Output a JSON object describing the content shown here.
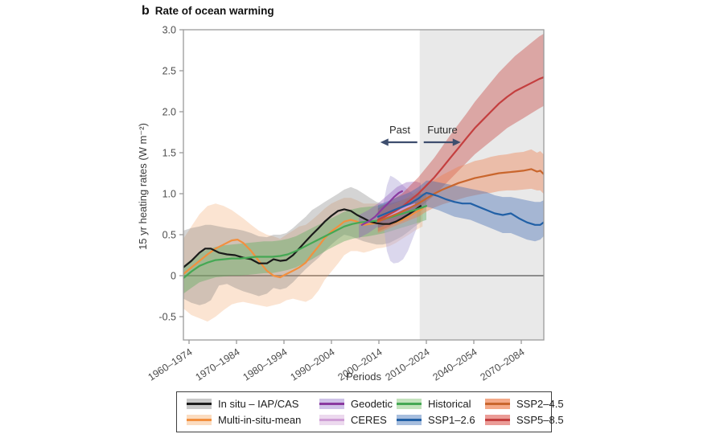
{
  "title": {
    "index": "b",
    "text": "Rate of ocean warming"
  },
  "axes": {
    "y_label": "15 yr heating rates (W m⁻²)",
    "x_label": "Periods",
    "y_tick_labels": [
      "3.0",
      "2.5",
      "2.0",
      "1.5",
      "1.0",
      "0.5",
      "0",
      "-0.5"
    ],
    "y_tick_values": [
      3.0,
      2.5,
      2.0,
      1.5,
      1.0,
      0.5,
      0,
      -0.5
    ],
    "x_tick_labels": [
      "1960–1974",
      "1970–1984",
      "1980–1994",
      "1990–2004",
      "2000–2014",
      "2010–2024",
      "2040–2054",
      "2070–2084"
    ]
  },
  "annotation": {
    "past": "Past",
    "future": "Future",
    "arrow_color": "#3e4e6e"
  },
  "style": {
    "future_region_fill": "#e9e9e9",
    "zero_line_color": "#8c8c8c",
    "axis_color": "#9a9a9a",
    "tick_text_color": "#4d4d4d"
  },
  "chart_data": {
    "type": "line",
    "title": "Rate of ocean warming",
    "xlabel": "Periods",
    "ylabel": "15 yr heating rates (W m⁻²)",
    "ylim": [
      -0.78,
      3.0
    ],
    "x_categories": [
      "1960–1974",
      "1970–1984",
      "1980–1994",
      "1990–2004",
      "2000–2014",
      "2010–2024",
      "2040–2054",
      "2070–2084"
    ],
    "future_start_index": 4.86,
    "grid": false,
    "legend_position": "bottom",
    "series": [
      {
        "id": "multi",
        "name": "Multi-in-situ-mean",
        "line_color": "#f2903f",
        "band_fill": "rgba(243,164,105,0.30)",
        "x": [
          -0.12,
          0.05,
          0.22,
          0.39,
          0.56,
          0.73,
          0.9,
          1.02,
          1.14,
          1.31,
          1.47,
          1.64,
          1.78,
          1.92,
          2.05,
          2.19,
          2.32,
          2.46,
          2.59,
          2.73,
          2.86,
          3,
          3.14,
          3.27,
          3.41,
          3.54,
          3.68,
          3.81,
          3.95,
          4.08,
          4.22,
          4.36,
          4.49,
          4.63,
          4.76,
          4.92
        ],
        "y": [
          0.02,
          0.1,
          0.18,
          0.26,
          0.33,
          0.38,
          0.43,
          0.44,
          0.4,
          0.3,
          0.18,
          0.06,
          0,
          -0.02,
          0.02,
          0.06,
          0.1,
          0.16,
          0.26,
          0.36,
          0.46,
          0.54,
          0.6,
          0.66,
          0.68,
          0.66,
          0.62,
          0.63,
          0.64,
          0.63,
          0.63,
          0.65,
          0.68,
          0.72,
          0.77,
          0.82
        ],
        "band_lower": [
          -0.4,
          -0.48,
          -0.52,
          -0.56,
          -0.5,
          -0.42,
          -0.35,
          -0.33,
          -0.32,
          -0.34,
          -0.36,
          -0.38,
          -0.36,
          -0.34,
          -0.3,
          -0.28,
          -0.3,
          -0.32,
          -0.28,
          -0.18,
          -0.05,
          0.05,
          0.15,
          0.25,
          0.3,
          0.3,
          0.28,
          0.3,
          0.33,
          0.34,
          0.36,
          0.4,
          0.45,
          0.5,
          0.55,
          0.6
        ],
        "band_upper": [
          0.45,
          0.6,
          0.75,
          0.85,
          0.88,
          0.85,
          0.8,
          0.75,
          0.7,
          0.62,
          0.55,
          0.5,
          0.48,
          0.45,
          0.5,
          0.55,
          0.6,
          0.62,
          0.68,
          0.75,
          0.82,
          0.88,
          0.92,
          0.95,
          0.95,
          0.92,
          0.88,
          0.88,
          0.88,
          0.86,
          0.85,
          0.87,
          0.9,
          0.93,
          0.96,
          1
        ]
      },
      {
        "id": "insitu",
        "name": "In situ – IAP/CAS",
        "line_color": "#1a1a1a",
        "band_fill": "rgba(120,120,120,0.32)",
        "x": [
          -0.12,
          0.05,
          0.22,
          0.34,
          0.46,
          0.63,
          0.8,
          0.97,
          1.14,
          1.31,
          1.47,
          1.64,
          1.78,
          1.92,
          2.05,
          2.19,
          2.32,
          2.46,
          2.59,
          2.73,
          2.86,
          3,
          3.14,
          3.27,
          3.41,
          3.54,
          3.68,
          3.81,
          3.95,
          4.08,
          4.22,
          4.36,
          4.49,
          4.63,
          4.76,
          4.88
        ],
        "y": [
          0.1,
          0.18,
          0.28,
          0.33,
          0.33,
          0.28,
          0.26,
          0.25,
          0.22,
          0.2,
          0.15,
          0.15,
          0.2,
          0.18,
          0.19,
          0.25,
          0.33,
          0.42,
          0.5,
          0.58,
          0.66,
          0.73,
          0.79,
          0.81,
          0.79,
          0.74,
          0.7,
          0.66,
          0.64,
          0.63,
          0.63,
          0.66,
          0.7,
          0.75,
          0.8,
          0.85
        ],
        "band_lower": [
          -0.28,
          -0.33,
          -0.36,
          -0.34,
          -0.3,
          -0.12,
          -0.1,
          -0.15,
          -0.19,
          -0.22,
          -0.25,
          -0.22,
          -0.15,
          -0.17,
          -0.15,
          -0.08,
          0,
          0.08,
          0.15,
          0.22,
          0.3,
          0.38,
          0.45,
          0.5,
          0.48,
          0.45,
          0.42,
          0.4,
          0.38,
          0.38,
          0.4,
          0.44,
          0.48,
          0.54,
          0.6,
          0.65
        ],
        "band_upper": [
          0.55,
          0.58,
          0.6,
          0.62,
          0.62,
          0.6,
          0.58,
          0.57,
          0.55,
          0.52,
          0.48,
          0.47,
          0.5,
          0.5,
          0.52,
          0.58,
          0.65,
          0.72,
          0.8,
          0.85,
          0.9,
          0.95,
          1,
          1.05,
          1.08,
          1.05,
          1,
          0.95,
          0.9,
          0.88,
          0.88,
          0.9,
          0.92,
          0.95,
          0.98,
          1
        ]
      },
      {
        "id": "historical",
        "name": "Historical",
        "line_color": "#45a854",
        "band_fill": "rgba(96,172,96,0.42)",
        "x": [
          -0.12,
          0.05,
          0.22,
          0.39,
          0.56,
          0.73,
          0.9,
          1.07,
          1.24,
          1.41,
          1.58,
          1.75,
          1.92,
          2.08,
          2.25,
          2.42,
          2.59,
          2.76,
          2.93,
          3.1,
          3.27,
          3.44,
          3.61,
          3.78,
          3.95,
          4.12,
          4.29,
          4.46,
          4.63,
          4.8,
          5
        ],
        "y": [
          -0.03,
          0.05,
          0.12,
          0.16,
          0.19,
          0.2,
          0.21,
          0.21,
          0.22,
          0.23,
          0.23,
          0.23,
          0.24,
          0.26,
          0.3,
          0.35,
          0.4,
          0.45,
          0.5,
          0.55,
          0.6,
          0.63,
          0.65,
          0.66,
          0.67,
          0.69,
          0.72,
          0.75,
          0.78,
          0.81,
          0.85
        ],
        "band_lower": [
          -0.22,
          -0.15,
          -0.08,
          -0.05,
          -0.02,
          -0.01,
          0,
          0,
          0.01,
          0.02,
          0.03,
          0.03,
          0.05,
          0.07,
          0.1,
          0.15,
          0.2,
          0.26,
          0.32,
          0.37,
          0.42,
          0.45,
          0.47,
          0.48,
          0.5,
          0.52,
          0.55,
          0.58,
          0.61,
          0.64,
          0.68
        ],
        "band_upper": [
          0.12,
          0.2,
          0.28,
          0.32,
          0.35,
          0.37,
          0.38,
          0.39,
          0.4,
          0.41,
          0.42,
          0.42,
          0.43,
          0.45,
          0.48,
          0.53,
          0.58,
          0.63,
          0.68,
          0.73,
          0.78,
          0.81,
          0.83,
          0.84,
          0.85,
          0.87,
          0.89,
          0.92,
          0.95,
          0.98,
          1.02
        ]
      },
      {
        "id": "ceres",
        "name": "CERES",
        "line_color": "#cf9fd6",
        "band_fill": "rgba(176,166,214,0.45)",
        "x": [
          4.15,
          4.3,
          4.45,
          4.6,
          4.75
        ],
        "y": [
          0.7,
          0.75,
          0.8,
          0.84,
          0.87
        ],
        "band_x": [
          4.1,
          4.17,
          4.24,
          4.31,
          4.41,
          4.51,
          4.61,
          4.71,
          4.8
        ],
        "band_lower": [
          0.6,
          0.3,
          0.18,
          0.15,
          0.16,
          0.2,
          0.3,
          0.45,
          0.58
        ],
        "band_upper": [
          0.9,
          1.1,
          1.22,
          1.2,
          1.16,
          1.1,
          1.05,
          1,
          0.95
        ]
      },
      {
        "id": "geodetic",
        "name": "Geodetic",
        "line_color": "#8a3aa0",
        "band_fill": "rgba(146,95,190,0.38)",
        "x": [
          3.64,
          3.78,
          3.92,
          4.05,
          4.19,
          4.32,
          4.42,
          4.49
        ],
        "y": [
          0.62,
          0.66,
          0.72,
          0.8,
          0.88,
          0.96,
          1.01,
          1.03
        ],
        "band_x": [
          3.58,
          3.78,
          3.98,
          4.18,
          4.38,
          4.58,
          4.78,
          4.88
        ],
        "band_lower": [
          0.46,
          0.52,
          0.6,
          0.7,
          0.8,
          0.84,
          0.84,
          0.83
        ],
        "band_upper": [
          0.74,
          0.8,
          0.88,
          0.98,
          1.08,
          1.14,
          1.15,
          1.13
        ]
      },
      {
        "id": "ssp585",
        "name": "SSP5–8.5",
        "line_color": "#c43f3f",
        "band_fill": "rgba(201,74,70,0.42)",
        "x": [
          3.98,
          4.15,
          4.32,
          4.49,
          4.66,
          4.83,
          5,
          5.17,
          5.34,
          5.51,
          5.68,
          5.85,
          6.02,
          6.19,
          6.36,
          6.53,
          6.7,
          6.87,
          7.04,
          7.21,
          7.38,
          7.47
        ],
        "y": [
          0.68,
          0.73,
          0.78,
          0.84,
          0.92,
          1,
          1.1,
          1.2,
          1.32,
          1.44,
          1.56,
          1.68,
          1.8,
          1.9,
          2,
          2.1,
          2.18,
          2.25,
          2.3,
          2.35,
          2.4,
          2.42
        ],
        "band_lower": [
          0.54,
          0.58,
          0.63,
          0.68,
          0.75,
          0.82,
          0.9,
          0.98,
          1.08,
          1.18,
          1.28,
          1.38,
          1.48,
          1.56,
          1.64,
          1.72,
          1.8,
          1.86,
          1.92,
          1.98,
          2.04,
          2.07
        ],
        "band_upper": [
          0.82,
          0.88,
          0.94,
          1,
          1.1,
          1.2,
          1.32,
          1.44,
          1.58,
          1.72,
          1.85,
          1.98,
          2.12,
          2.24,
          2.36,
          2.48,
          2.58,
          2.68,
          2.76,
          2.84,
          2.92,
          2.95
        ]
      },
      {
        "id": "ssp245",
        "name": "SSP2–4.5",
        "line_color": "#c9662d",
        "band_fill": "rgba(238,128,82,0.42)",
        "x": [
          3.98,
          4.15,
          4.32,
          4.49,
          4.66,
          4.83,
          5,
          5.17,
          5.34,
          5.51,
          5.68,
          5.85,
          6.02,
          6.19,
          6.36,
          6.53,
          6.7,
          6.87,
          7.04,
          7.21,
          7.33,
          7.4,
          7.47
        ],
        "y": [
          0.66,
          0.7,
          0.74,
          0.78,
          0.83,
          0.88,
          0.94,
          1,
          1.05,
          1.09,
          1.13,
          1.16,
          1.19,
          1.21,
          1.23,
          1.25,
          1.26,
          1.27,
          1.28,
          1.3,
          1.27,
          1.28,
          1.24
        ],
        "band_lower": [
          0.52,
          0.56,
          0.6,
          0.64,
          0.68,
          0.72,
          0.78,
          0.83,
          0.87,
          0.9,
          0.93,
          0.96,
          0.98,
          1,
          1.01,
          1.03,
          1.04,
          1.04,
          1.05,
          1.06,
          1.04,
          1.04,
          1
        ],
        "band_upper": [
          0.8,
          0.84,
          0.88,
          0.92,
          0.98,
          1.04,
          1.1,
          1.17,
          1.23,
          1.28,
          1.33,
          1.36,
          1.4,
          1.42,
          1.45,
          1.47,
          1.48,
          1.5,
          1.51,
          1.54,
          1.5,
          1.52,
          1.48
        ]
      },
      {
        "id": "ssp126",
        "name": "SSP1–2.6",
        "line_color": "#2160a6",
        "band_fill": "rgba(62,105,178,0.40)",
        "x": [
          3.98,
          4.15,
          4.32,
          4.49,
          4.66,
          4.83,
          4.92,
          5,
          5.08,
          5.25,
          5.42,
          5.59,
          5.76,
          5.93,
          6.1,
          6.27,
          6.44,
          6.61,
          6.78,
          6.95,
          7.12,
          7.29,
          7.4,
          7.47
        ],
        "y": [
          0.72,
          0.76,
          0.8,
          0.84,
          0.88,
          0.94,
          0.98,
          1.01,
          1,
          0.97,
          0.93,
          0.9,
          0.88,
          0.88,
          0.84,
          0.8,
          0.76,
          0.74,
          0.76,
          0.7,
          0.65,
          0.62,
          0.62,
          0.65
        ],
        "band_lower": [
          0.58,
          0.62,
          0.66,
          0.7,
          0.74,
          0.78,
          0.82,
          0.84,
          0.83,
          0.8,
          0.76,
          0.72,
          0.7,
          0.68,
          0.64,
          0.6,
          0.56,
          0.52,
          0.52,
          0.48,
          0.44,
          0.42,
          0.44,
          0.48
        ],
        "band_upper": [
          0.86,
          0.9,
          0.94,
          0.98,
          1.02,
          1.08,
          1.12,
          1.16,
          1.16,
          1.14,
          1.12,
          1.1,
          1.08,
          1.06,
          1.04,
          1.02,
          0.98,
          0.96,
          0.96,
          0.94,
          0.92,
          0.9,
          0.9,
          0.92
        ]
      }
    ]
  },
  "legend": {
    "items": [
      {
        "label": "In situ – IAP/CAS",
        "line": "#1c1c1c",
        "band": "#c9c9c9"
      },
      {
        "label": "Multi-in-situ-mean",
        "line": "#f2903f",
        "band": "#fbdcc0"
      },
      {
        "label": "Geodetic",
        "line": "#8a3aa0",
        "band": "#cfc2e8"
      },
      {
        "label": "CERES",
        "line": "#cf9fd6",
        "band": "#ecd9ee"
      },
      {
        "label": "Historical",
        "line": "#45a854",
        "band": "#c3e3bd"
      },
      {
        "label": "SSP1–2.6",
        "line": "#2160a6",
        "band": "#a7bede"
      },
      {
        "label": "SSP2–4.5",
        "line": "#c9662d",
        "band": "#f4a988"
      },
      {
        "label": "SSP5–8.5",
        "line": "#c43f3f",
        "band": "#eb9c97"
      }
    ]
  }
}
